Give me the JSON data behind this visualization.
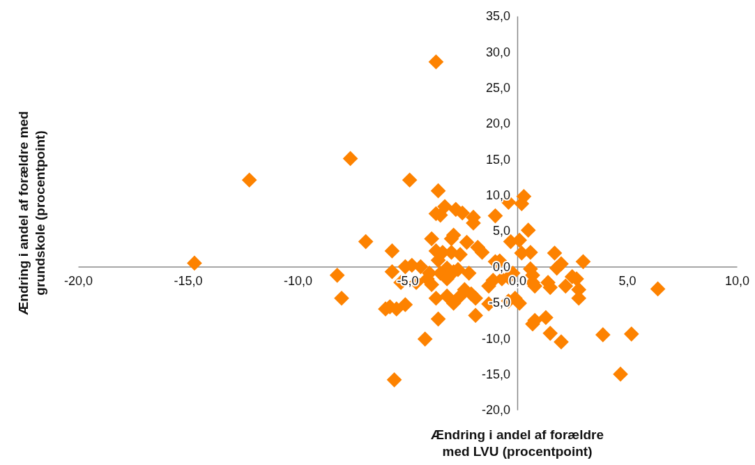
{
  "chart_data": {
    "type": "scatter",
    "xlabel": "Ændring i andel af forældre med LVU (procentpoint)",
    "ylabel": "Ændring i andel af forældre med grundskole (procentpoint)",
    "xlim": [
      -20,
      10
    ],
    "ylim": [
      -20,
      35
    ],
    "xticks": [
      {
        "value": -20,
        "label": "-20,0"
      },
      {
        "value": -15,
        "label": "-15,0"
      },
      {
        "value": -10,
        "label": "-10,0"
      },
      {
        "value": -5,
        "label": "-5,0"
      },
      {
        "value": 0,
        "label": "0,0"
      },
      {
        "value": 5,
        "label": "5,0"
      },
      {
        "value": 10,
        "label": "10,0"
      }
    ],
    "yticks": [
      {
        "value": -20,
        "label": "-20,0"
      },
      {
        "value": -15,
        "label": "-15,0"
      },
      {
        "value": -10,
        "label": "-10,0"
      },
      {
        "value": -5,
        "label": "-5,0"
      },
      {
        "value": 0,
        "label": "0,0"
      },
      {
        "value": 5,
        "label": "5,0"
      },
      {
        "value": 10,
        "label": "10,0"
      },
      {
        "value": 15,
        "label": "15,0"
      },
      {
        "value": 20,
        "label": "20,0"
      },
      {
        "value": 25,
        "label": "25,0"
      },
      {
        "value": 30,
        "label": "30,0"
      },
      {
        "value": 35,
        "label": "35,0"
      }
    ],
    "marker": "diamond",
    "grid": false,
    "series": [
      {
        "color": "#fd8200",
        "x": [
          -14.7,
          -12.2,
          -7.6,
          -3.7,
          -4.9,
          -6.9,
          -8.2,
          -8.0,
          -5.7,
          -5.7,
          -5.3,
          -6.0,
          -5.8,
          -5.5,
          -5.1,
          -5.6,
          -4.2,
          -3.6,
          -3.6,
          -3.7,
          -3.5,
          -3.3,
          -2.8,
          -2.5,
          -2.0,
          -2.0,
          -1.0,
          -3.9,
          -3.0,
          -2.9,
          -2.3,
          -3.7,
          -3.4,
          -3.0,
          -2.6,
          -1.8,
          -1.6,
          -3.6,
          -1.0,
          -5.1,
          -4.8,
          -4.4,
          -4.0,
          -3.2,
          -4.6,
          -4.1,
          -3.9,
          -3.5,
          -3.2,
          -2.9,
          -2.7,
          -2.2,
          -3.7,
          -3.2,
          -2.9,
          -2.6,
          -2.4,
          -2.1,
          -1.9,
          -1.3,
          -1.9,
          -1.3,
          -1.1,
          -0.7,
          -0.4,
          -0.2,
          -0.4,
          -0.1,
          0.1,
          -0.4,
          0.2,
          0.3,
          0.5,
          -0.3,
          0.1,
          0.2,
          0.6,
          -0.8,
          0.6,
          0.7,
          0.7,
          0.8,
          0.7,
          0.8,
          1.3,
          1.5,
          2.0,
          1.4,
          1.5,
          1.7,
          1.8,
          2.0,
          2.2,
          2.5,
          2.7,
          2.8,
          2.8,
          3.0,
          3.9,
          5.2,
          4.7,
          6.4
        ],
        "values": [
          0.5,
          12.1,
          15.1,
          28.6,
          12.1,
          3.5,
          -1.2,
          -4.4,
          2.2,
          -0.7,
          -2.2,
          -5.9,
          -5.6,
          -5.9,
          -5.3,
          -15.8,
          -10.1,
          -7.3,
          10.6,
          7.4,
          7.2,
          8.4,
          8.0,
          7.5,
          6.9,
          6.1,
          7.1,
          3.9,
          3.9,
          4.4,
          3.4,
          2.2,
          2.0,
          2.0,
          1.7,
          2.7,
          2.0,
          0.9,
          0.7,
          0,
          0.2,
          0,
          -0.9,
          -0.2,
          -2.2,
          -1.7,
          -2.5,
          -0.9,
          -1.7,
          -0.7,
          -0.4,
          -0.9,
          -4.4,
          -4.1,
          -5.1,
          -4.1,
          -3.2,
          -3.8,
          -4.4,
          -5.2,
          -6.8,
          -2.7,
          -1.9,
          -1.7,
          -1.5,
          -0.9,
          -4.8,
          -4.4,
          -5.1,
          9.0,
          8.8,
          9.8,
          5.1,
          3.5,
          3.7,
          1.9,
          2.0,
          0.8,
          -0.3,
          -1.2,
          -2.2,
          -2.7,
          -8.0,
          -7.5,
          -7.1,
          -9.3,
          -10.5,
          -2.2,
          -2.9,
          1.9,
          -0.2,
          0.4,
          -2.7,
          -1.4,
          -1.7,
          -3.2,
          -4.4,
          0.7,
          -9.5,
          -9.4,
          -15.0,
          -3.1
        ]
      }
    ]
  }
}
